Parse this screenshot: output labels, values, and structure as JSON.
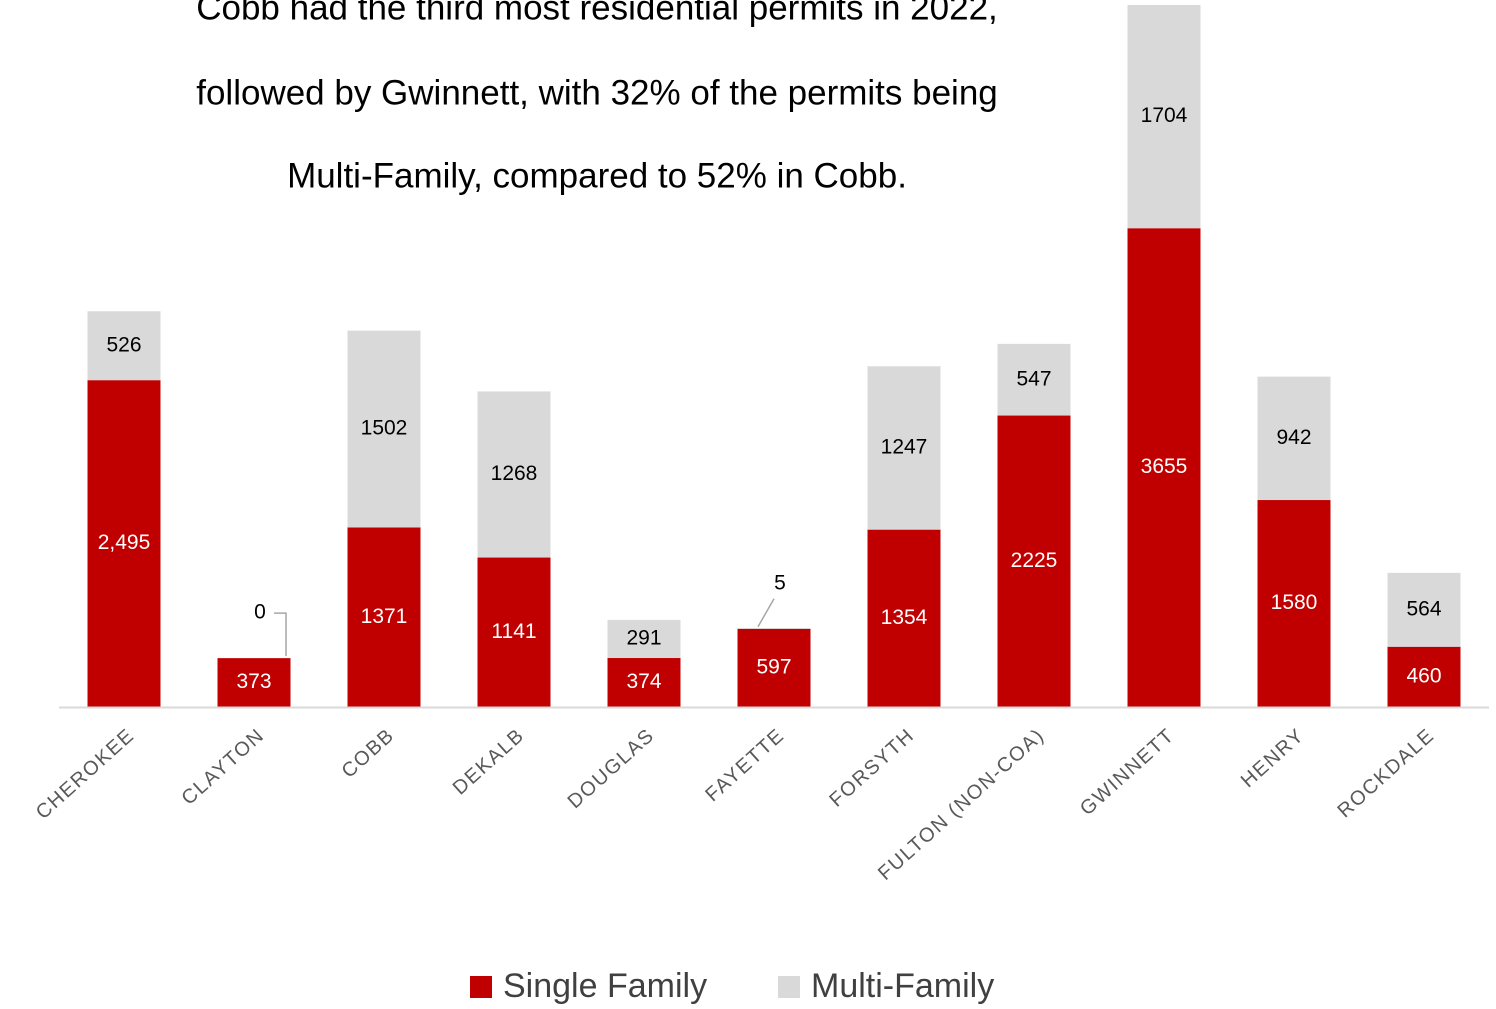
{
  "chart_data": {
    "type": "stacked_bar",
    "title": [
      "Cobb had the third most residential permits in 2022,",
      "followed by Gwinnett, with 32% of the permits being",
      "Multi-Family, compared to 52% in Cobb."
    ],
    "categories": [
      "CHEROKEE",
      "CLAYTON",
      "COBB",
      "DEKALB",
      "DOUGLAS",
      "FAYETTE",
      "FORSYTH",
      "FULTON (NON-COA)",
      "GWINNETT",
      "HENRY",
      "ROCKDALE"
    ],
    "series": [
      {
        "name": "Single Family",
        "color": "#c00000",
        "values": [
          2495,
          373,
          1371,
          1141,
          374,
          597,
          1354,
          2225,
          3655,
          1580,
          460
        ],
        "value_labels": [
          "2,495",
          "373",
          "1371",
          "1141",
          "374",
          "597",
          "1354",
          "2225",
          "3655",
          "1580",
          "460"
        ]
      },
      {
        "name": "Multi-Family",
        "color": "#d9d9d9",
        "values": [
          526,
          0,
          1502,
          1268,
          291,
          5,
          1247,
          547,
          1704,
          942,
          564
        ]
      }
    ],
    "legend": "bottom"
  }
}
